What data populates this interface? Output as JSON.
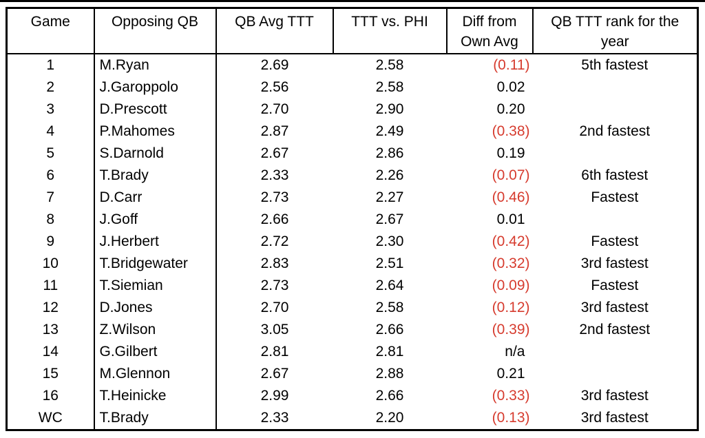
{
  "page": {
    "background": "#ffffff",
    "top_rule_color": "#000000"
  },
  "chart_data": {
    "type": "table",
    "columns": [
      "Game",
      "Opposing QB",
      "QB Avg TTT",
      "TTT vs. PHI",
      "Diff from\nOwn Avg",
      "QB TTT rank for the\nyear"
    ],
    "rows": [
      [
        "1",
        "M.Ryan",
        "2.69",
        "2.58",
        "(0.11)",
        "5th fastest"
      ],
      [
        "2",
        "J.Garoppolo",
        "2.56",
        "2.58",
        "0.02",
        ""
      ],
      [
        "3",
        "D.Prescott",
        "2.70",
        "2.90",
        "0.20",
        ""
      ],
      [
        "4",
        "P.Mahomes",
        "2.87",
        "2.49",
        "(0.38)",
        "2nd fastest"
      ],
      [
        "5",
        "S.Darnold",
        "2.67",
        "2.86",
        "0.19",
        ""
      ],
      [
        "6",
        "T.Brady",
        "2.33",
        "2.26",
        "(0.07)",
        "6th fastest"
      ],
      [
        "7",
        "D.Carr",
        "2.73",
        "2.27",
        "(0.46)",
        "Fastest"
      ],
      [
        "8",
        "J.Goff",
        "2.66",
        "2.67",
        "0.01",
        ""
      ],
      [
        "9",
        "J.Herbert",
        "2.72",
        "2.30",
        "(0.42)",
        "Fastest"
      ],
      [
        "10",
        "T.Bridgewater",
        "2.83",
        "2.51",
        "(0.32)",
        "3rd fastest"
      ],
      [
        "11",
        "T.Siemian",
        "2.73",
        "2.64",
        "(0.09)",
        "Fastest"
      ],
      [
        "12",
        "D.Jones",
        "2.70",
        "2.58",
        "(0.12)",
        "3rd fastest"
      ],
      [
        "13",
        "Z.Wilson",
        "3.05",
        "2.66",
        "(0.39)",
        "2nd fastest"
      ],
      [
        "14",
        "G.Gilbert",
        "2.81",
        "2.81",
        "n/a",
        ""
      ],
      [
        "15",
        "M.Glennon",
        "2.67",
        "2.88",
        "0.21",
        ""
      ],
      [
        "16",
        "T.Heinicke",
        "2.99",
        "2.66",
        "(0.33)",
        "3rd fastest"
      ],
      [
        "WC",
        "T.Brady",
        "2.33",
        "2.20",
        "(0.13)",
        "3rd fastest"
      ]
    ],
    "colors": {
      "text": "#000000",
      "border": "#000000",
      "negative_value": "#d63b2e"
    }
  }
}
